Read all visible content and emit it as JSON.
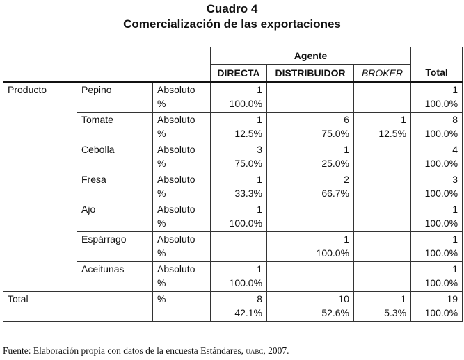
{
  "title": "Cuadro 4",
  "subtitle": "Comercialización de las exportaciones",
  "header": {
    "agent": "Agente",
    "columns": [
      "DIRECTA",
      "DISTRIBUIDOR",
      "BROKER"
    ],
    "total": "Total"
  },
  "row_group": "Producto",
  "rows": [
    {
      "product": "Pepino",
      "abs_label": "Absoluto",
      "pct_label": "%",
      "directa": [
        "1",
        "100.0%"
      ],
      "distribuidor": [
        "",
        ""
      ],
      "broker": [
        "",
        ""
      ],
      "total": [
        "1",
        "100.0%"
      ]
    },
    {
      "product": "Tomate",
      "abs_label": "Absoluto",
      "pct_label": "%",
      "directa": [
        "1",
        "12.5%"
      ],
      "distribuidor": [
        "6",
        "75.0%"
      ],
      "broker": [
        "1",
        "12.5%"
      ],
      "total": [
        "8",
        "100.0%"
      ]
    },
    {
      "product": "Cebolla",
      "abs_label": "Absoluto",
      "pct_label": "%",
      "directa": [
        "3",
        "75.0%"
      ],
      "distribuidor": [
        "1",
        "25.0%"
      ],
      "broker": [
        "",
        ""
      ],
      "total": [
        "4",
        "100.0%"
      ]
    },
    {
      "product": "Fresa",
      "abs_label": "Absoluto",
      "pct_label": "%",
      "directa": [
        "1",
        "33.3%"
      ],
      "distribuidor": [
        "2",
        "66.7%"
      ],
      "broker": [
        "",
        ""
      ],
      "total": [
        "3",
        "100.0%"
      ]
    },
    {
      "product": "Ajo",
      "abs_label": "Absoluto",
      "pct_label": "%",
      "directa": [
        "1",
        "100.0%"
      ],
      "distribuidor": [
        "",
        ""
      ],
      "broker": [
        "",
        ""
      ],
      "total": [
        "1",
        "100.0%"
      ]
    },
    {
      "product": "Espárrago",
      "abs_label": "Absoluto",
      "pct_label": "%",
      "directa": [
        "",
        ""
      ],
      "distribuidor": [
        "1",
        "100.0%"
      ],
      "broker": [
        "",
        ""
      ],
      "total": [
        "1",
        "100.0%"
      ]
    },
    {
      "product": "Aceitunas",
      "abs_label": "Absoluto",
      "pct_label": "%",
      "directa": [
        "1",
        "100.0%"
      ],
      "distribuidor": [
        "",
        ""
      ],
      "broker": [
        "",
        ""
      ],
      "total": [
        "1",
        "100.0%"
      ]
    }
  ],
  "total_row": {
    "label": "Total",
    "pct_label": "%",
    "directa": [
      "8",
      "42.1%"
    ],
    "distribuidor": [
      "10",
      "52.6%"
    ],
    "broker": [
      "1",
      "5.3%"
    ],
    "total": [
      "19",
      "100.0%"
    ]
  },
  "footer": {
    "text": "Fuente: Elaboración propia con datos de la encuesta Estándares, ",
    "org": "UABC",
    "year": ", 2007."
  }
}
